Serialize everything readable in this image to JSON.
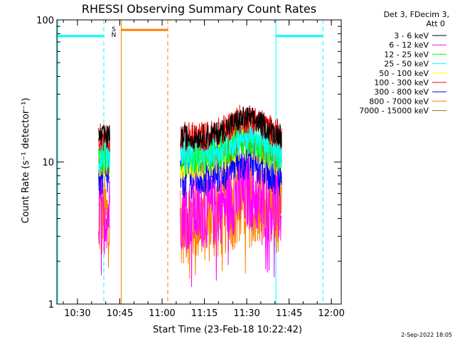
{
  "chart_data": {
    "type": "line",
    "title": "RHESSI Observing Summary Count Rates",
    "xlabel": "Start Time (23-Feb-18 10:22:42)",
    "ylabel": "Count Rate (s⁻¹ detector⁻¹)",
    "yscale": "log",
    "ylim": [
      1,
      100
    ],
    "xlim": [
      "10:22:42",
      "12:03:30"
    ],
    "x_ticks": [
      "10:30",
      "10:45",
      "11:00",
      "11:15",
      "11:30",
      "11:45",
      "12:00"
    ],
    "y_ticks": [
      "1",
      "10",
      "100"
    ],
    "legend_header": [
      "Det 3, FDecim 3,",
      "Att 0"
    ],
    "legend_position": "right",
    "date_stamp": "2-Sep-2022 18:05",
    "flag_labels": {
      "saa": "S",
      "night": "N"
    },
    "series": [
      {
        "name": "3 - 6 keV",
        "color": "#000000",
        "approx_level": 15,
        "spread": 0.08
      },
      {
        "name": "6 - 12 keV",
        "color": "#ff00ff",
        "approx_level": 4.5,
        "spread": 0.25
      },
      {
        "name": "12 - 25 keV",
        "color": "#00ff00",
        "approx_level": 11,
        "spread": 0.12
      },
      {
        "name": "25 - 50 keV",
        "color": "#00ffff",
        "approx_level": 11.5,
        "spread": 0.12
      },
      {
        "name": "50 - 100 keV",
        "color": "#ffff00",
        "approx_level": 10,
        "spread": 0.12
      },
      {
        "name": "100 - 300 keV",
        "color": "#ff0000",
        "approx_level": 15,
        "spread": 0.1
      },
      {
        "name": "300 - 800 keV",
        "color": "#0000ff",
        "approx_level": 8,
        "spread": 0.15
      },
      {
        "name": "800 - 7000 keV",
        "color": "#ff8000",
        "approx_level": 4,
        "spread": 0.3
      },
      {
        "name": "7000 - 15000 keV",
        "color": "#808000",
        "approx_level": 11,
        "spread": 0.12
      }
    ],
    "segments": [
      {
        "start": "10:37:30",
        "end": "10:41:30"
      },
      {
        "start": "11:06:30",
        "end": "11:42:30"
      }
    ],
    "flag_bars": [
      {
        "kind": "night",
        "color": "#00ffff",
        "start": "10:22:42",
        "end": "10:39:20",
        "level": 77
      },
      {
        "kind": "saa",
        "color": "#ff8000",
        "start": "10:45:30",
        "end": "11:02:00",
        "level": 85
      },
      {
        "kind": "night",
        "color": "#00ffff",
        "start": "11:40:20",
        "end": "11:57:00",
        "level": 77
      }
    ],
    "vertical_markers": [
      {
        "time": "10:23:00",
        "color": "#00ffff",
        "style": "solid"
      },
      {
        "time": "10:39:20",
        "color": "#00ffff",
        "style": "dashed"
      },
      {
        "time": "10:45:30",
        "color": "#ff8000",
        "style": "solid"
      },
      {
        "time": "11:02:00",
        "color": "#ff8000",
        "style": "dashed"
      },
      {
        "time": "11:40:20",
        "color": "#00ffff",
        "style": "solid"
      },
      {
        "time": "11:57:00",
        "color": "#00ffff",
        "style": "dashed"
      }
    ]
  }
}
